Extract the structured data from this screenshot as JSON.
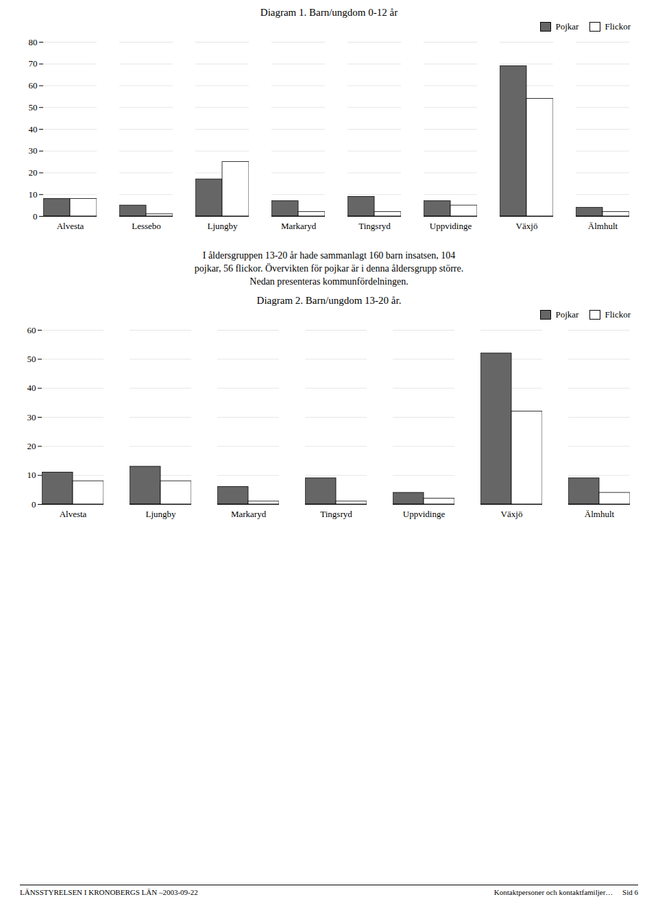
{
  "chart_data": [
    {
      "type": "bar",
      "title": "Diagram 1. Barn/ungdom 0-12 år",
      "categories": [
        "Alvesta",
        "Lessebo",
        "Ljungby",
        "Markaryd",
        "Tingsryd",
        "Uppvidinge",
        "Växjö",
        "Älmhult"
      ],
      "series": [
        {
          "name": "Pojkar",
          "color": "#666666",
          "values": [
            8,
            5,
            17,
            7,
            9,
            7,
            69,
            4
          ]
        },
        {
          "name": "Flickor",
          "color": "#ffffff",
          "values": [
            8,
            1,
            25,
            2,
            2,
            5,
            54,
            2
          ]
        }
      ],
      "ylim": [
        0,
        80
      ],
      "yticks": [
        0,
        10,
        20,
        30,
        40,
        50,
        60,
        70,
        80
      ],
      "grid": true,
      "legend": "upper right"
    },
    {
      "type": "bar",
      "title": "Diagram 2. Barn/ungdom 13-20 år.",
      "categories": [
        "Alvesta",
        "Ljungby",
        "Markaryd",
        "Tingsryd",
        "Uppvidinge",
        "Växjö",
        "Älmhult"
      ],
      "series": [
        {
          "name": "Pojkar",
          "color": "#666666",
          "values": [
            11,
            13,
            6,
            9,
            4,
            52,
            9
          ]
        },
        {
          "name": "Flickor",
          "color": "#ffffff",
          "values": [
            8,
            8,
            1,
            1,
            2,
            32,
            4
          ]
        }
      ],
      "ylim": [
        0,
        60
      ],
      "yticks": [
        0,
        10,
        20,
        30,
        40,
        50,
        60
      ],
      "grid": true,
      "legend": "upper right"
    }
  ],
  "annotations": [
    "I åldersgruppen 13-20 år hade sammanlagt 160 barn insatsen, 104",
    "pojkar, 56 flickor. Övervikten för pojkar är i denna åldersgrupp större.",
    "Nedan presenteras kommunfördelningen."
  ],
  "footer": [
    "LÄNSSTYRELSEN I KRONOBERGS LÄN –2003-09-22",
    "Kontaktpersoner och kontaktfamiljer…     Sid 6"
  ]
}
